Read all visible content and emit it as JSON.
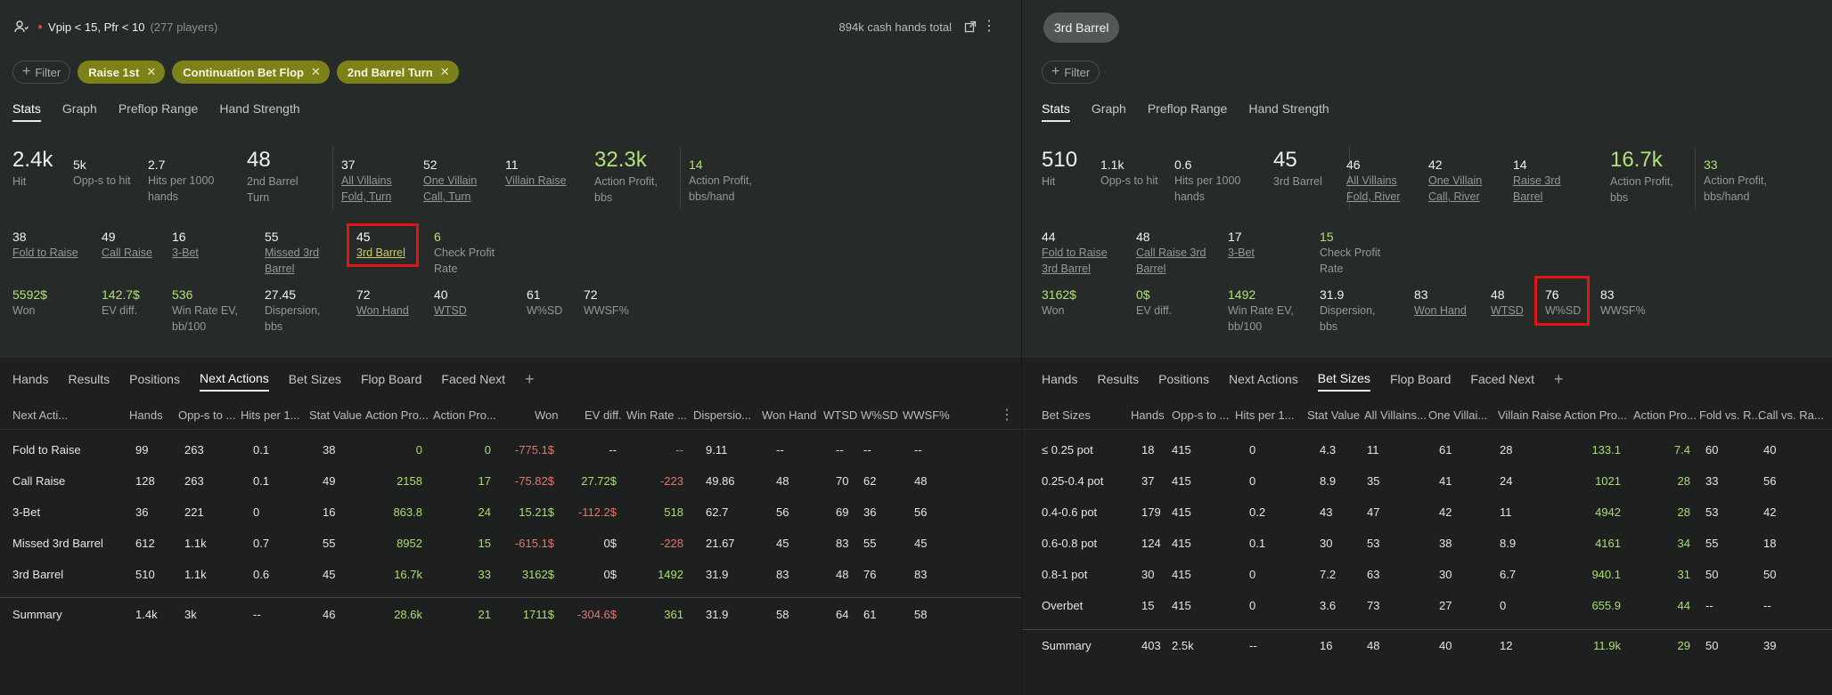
{
  "left": {
    "header": {
      "title": "Vpip < 15, Pfr < 10",
      "players": "(277 players)",
      "total": "894k cash hands total"
    },
    "filter_label": "Filter",
    "chips": [
      "Raise 1st",
      "Continuation Bet Flop",
      "2nd Barrel Turn"
    ],
    "tabs": [
      "Stats",
      "Graph",
      "Preflop Range",
      "Hand Strength"
    ],
    "stats": {
      "hit": {
        "v": "2.4k",
        "l": "Hit"
      },
      "opps": {
        "v": "5k",
        "l": "Opp-s to hit"
      },
      "per1000": {
        "v": "2.7",
        "l1": "Hits per 1000",
        "l2": "hands"
      },
      "stat_value": {
        "v": "48",
        "l1": "2nd Barrel",
        "l2": "Turn"
      },
      "all_villains": {
        "v": "37",
        "l1": "All Villains",
        "l2": "Fold, Turn"
      },
      "one_villain": {
        "v": "52",
        "l1": "One Villain",
        "l2": "Call, Turn"
      },
      "villain_raise": {
        "v": "11",
        "l": "Villain Raise"
      },
      "action_profit": {
        "v": "32.3k",
        "l1": "Action Profit,",
        "l2": "bbs"
      },
      "action_profit_hand": {
        "v": "14",
        "l1": "Action Profit,",
        "l2": "bbs/hand"
      },
      "fold_to_raise": {
        "v": "38",
        "l": "Fold to Raise"
      },
      "call_raise": {
        "v": "49",
        "l": "Call Raise"
      },
      "three_bet": {
        "v": "16",
        "l": "3-Bet"
      },
      "missed": {
        "v": "55",
        "l1": "Missed 3rd",
        "l2": "Barrel"
      },
      "third_barrel": {
        "v": "45",
        "l": "3rd Barrel"
      },
      "check_profit": {
        "v": "6",
        "l1": "Check Profit",
        "l2": "Rate"
      },
      "won": {
        "v": "5592$",
        "l": "Won"
      },
      "ev_diff": {
        "v": "142.7$",
        "l": "EV diff."
      },
      "win_rate": {
        "v": "536",
        "l1": "Win Rate EV,",
        "l2": "bb/100"
      },
      "dispersion": {
        "v": "27.45",
        "l1": "Dispersion,",
        "l2": "bbs"
      },
      "won_hand": {
        "v": "72",
        "l": "Won Hand"
      },
      "wtsd": {
        "v": "40",
        "l": "WTSD"
      },
      "wsd": {
        "v": "61",
        "l": "W%SD"
      },
      "wwsf": {
        "v": "72",
        "l": "WWSF%"
      }
    },
    "bottom_tabs": [
      "Hands",
      "Results",
      "Positions",
      "Next Actions",
      "Bet Sizes",
      "Flop Board",
      "Faced Next"
    ],
    "table": {
      "headers": [
        "Next Acti...",
        "Hands",
        "Opp-s to ...",
        "Hits per 1...",
        "Stat Value",
        "Action Pro...",
        "Action Pro...",
        "Won",
        "EV diff.",
        "Win Rate ...",
        "Dispersio...",
        "Won Hand",
        "WTSD",
        "W%SD",
        "WWSF%"
      ],
      "rows": [
        [
          "Fold to Raise",
          "99",
          "263",
          "0.1",
          "38",
          "0",
          "0",
          "-775.1$",
          "--",
          "--",
          "9.11",
          "--",
          "--",
          "--",
          "--"
        ],
        [
          "Call Raise",
          "128",
          "263",
          "0.1",
          "49",
          "2158",
          "17",
          "-75.82$",
          "27.72$",
          "-223",
          "49.86",
          "48",
          "70",
          "62",
          "48"
        ],
        [
          "3-Bet",
          "36",
          "221",
          "0",
          "16",
          "863.8",
          "24",
          "15.21$",
          "-112.2$",
          "518",
          "62.7",
          "56",
          "69",
          "36",
          "56"
        ],
        [
          "Missed 3rd Barrel",
          "612",
          "1.1k",
          "0.7",
          "55",
          "8952",
          "15",
          "-615.1$",
          "0$",
          "-228",
          "21.67",
          "45",
          "83",
          "55",
          "45"
        ],
        [
          "3rd Barrel",
          "510",
          "1.1k",
          "0.6",
          "45",
          "16.7k",
          "33",
          "3162$",
          "0$",
          "1492",
          "31.9",
          "83",
          "48",
          "76",
          "83"
        ]
      ],
      "summary": [
        "Summary",
        "1.4k",
        "3k",
        "--",
        "46",
        "28.6k",
        "21",
        "1711$",
        "-304.6$",
        "361",
        "31.9",
        "58",
        "64",
        "61",
        "58"
      ]
    }
  },
  "right": {
    "title": "3rd Barrel",
    "filter_label": "Filter",
    "tabs": [
      "Stats",
      "Graph",
      "Preflop Range",
      "Hand Strength"
    ],
    "stats": {
      "hit": {
        "v": "510",
        "l": "Hit"
      },
      "opps": {
        "v": "1.1k",
        "l": "Opp-s to hit"
      },
      "per1000": {
        "v": "0.6",
        "l1": "Hits per 1000",
        "l2": "hands"
      },
      "stat_value": {
        "v": "45",
        "l": "3rd Barrel"
      },
      "all_villains": {
        "v": "46",
        "l1": "All Villains",
        "l2": "Fold, River"
      },
      "one_villain": {
        "v": "42",
        "l1": "One Villain",
        "l2": "Call, River"
      },
      "raise_3rd": {
        "v": "14",
        "l1": "Raise 3rd",
        "l2": "Barrel"
      },
      "action_profit": {
        "v": "16.7k",
        "l1": "Action Profit,",
        "l2": "bbs"
      },
      "action_profit_hand": {
        "v": "33",
        "l1": "Action Profit,",
        "l2": "bbs/hand"
      },
      "fold_to_raise": {
        "v": "44",
        "l1": "Fold to Raise",
        "l2": "3rd Barrel"
      },
      "call_raise": {
        "v": "48",
        "l1": "Call Raise 3rd",
        "l2": "Barrel"
      },
      "three_bet": {
        "v": "17",
        "l": "3-Bet"
      },
      "check_profit": {
        "v": "15",
        "l1": "Check Profit",
        "l2": "Rate"
      },
      "won": {
        "v": "3162$",
        "l": "Won"
      },
      "ev_diff": {
        "v": "0$",
        "l": "EV diff."
      },
      "win_rate": {
        "v": "1492",
        "l1": "Win Rate EV,",
        "l2": "bb/100"
      },
      "dispersion": {
        "v": "31.9",
        "l1": "Dispersion,",
        "l2": "bbs"
      },
      "won_hand": {
        "v": "83",
        "l": "Won Hand"
      },
      "wtsd": {
        "v": "48",
        "l": "WTSD"
      },
      "wsd": {
        "v": "76",
        "l": "W%SD"
      },
      "wwsf": {
        "v": "83",
        "l": "WWSF%"
      }
    },
    "bottom_tabs": [
      "Hands",
      "Results",
      "Positions",
      "Next Actions",
      "Bet Sizes",
      "Flop Board",
      "Faced Next"
    ],
    "table": {
      "headers": [
        "Bet Sizes",
        "Hands",
        "Opp-s to ...",
        "Hits per 1...",
        "Stat Value",
        "All Villains...",
        "One Villai...",
        "Villain Raise",
        "Action Pro...",
        "Action Pro...",
        "Fold vs. R...",
        "Call vs. Ra..."
      ],
      "rows": [
        [
          "≤ 0.25 pot",
          "18",
          "415",
          "0",
          "4.3",
          "11",
          "61",
          "28",
          "133.1",
          "7.4",
          "60",
          "40"
        ],
        [
          "0.25-0.4 pot",
          "37",
          "415",
          "0",
          "8.9",
          "35",
          "41",
          "24",
          "1021",
          "28",
          "33",
          "56"
        ],
        [
          "0.4-0.6 pot",
          "179",
          "415",
          "0.2",
          "43",
          "47",
          "42",
          "11",
          "4942",
          "28",
          "53",
          "42"
        ],
        [
          "0.6-0.8 pot",
          "124",
          "415",
          "0.1",
          "30",
          "53",
          "38",
          "8.9",
          "4161",
          "34",
          "55",
          "18"
        ],
        [
          "0.8-1 pot",
          "30",
          "415",
          "0",
          "7.2",
          "63",
          "30",
          "6.7",
          "940.1",
          "31",
          "50",
          "50"
        ],
        [
          "Overbet",
          "15",
          "415",
          "0",
          "3.6",
          "73",
          "27",
          "0",
          "655.9",
          "44",
          "--",
          "--"
        ]
      ],
      "summary": [
        "Summary",
        "403",
        "2.5k",
        "--",
        "16",
        "48",
        "40",
        "12",
        "11.9k",
        "29",
        "50",
        "39"
      ]
    }
  },
  "colors": {
    "chip": "#7c8218",
    "green": "#a9dd72",
    "red": "#e0766e",
    "highlight": "#e01515"
  }
}
